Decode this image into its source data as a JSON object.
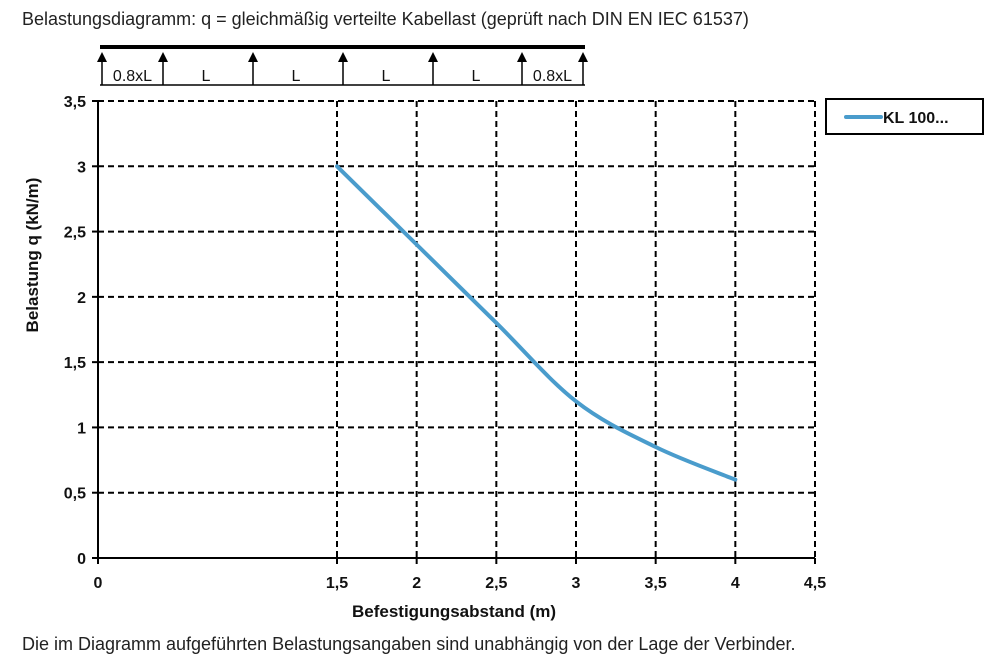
{
  "title": "Belastungsdiagramm: q = gleichmäßig verteilte Kabellast (geprüft nach DIN EN IEC 61537)",
  "note": "Die im Diagramm aufgeführten Belastungsangaben sind unabhängig von der Lage der Verbinder.",
  "beam": {
    "spans": [
      "0.8xL",
      "L",
      "L",
      "L",
      "L",
      "0.8xL"
    ]
  },
  "chart_data": {
    "type": "line",
    "xlabel": "Befestigungsabstand (m)",
    "ylabel": "Belastung q (kN/m)",
    "xlim": [
      0,
      4.5
    ],
    "ylim": [
      0,
      3.5
    ],
    "xticks": [
      {
        "value": 0,
        "label": "0"
      },
      {
        "value": 1.5,
        "label": "1,5"
      },
      {
        "value": 2,
        "label": "2"
      },
      {
        "value": 2.5,
        "label": "2,5"
      },
      {
        "value": 3,
        "label": "3"
      },
      {
        "value": 3.5,
        "label": "3,5"
      },
      {
        "value": 4,
        "label": "4"
      },
      {
        "value": 4.5,
        "label": "4,5"
      }
    ],
    "yticks": [
      {
        "value": 0,
        "label": "0"
      },
      {
        "value": 0.5,
        "label": "0,5"
      },
      {
        "value": 1,
        "label": "1"
      },
      {
        "value": 1.5,
        "label": "1,5"
      },
      {
        "value": 2,
        "label": "2"
      },
      {
        "value": 2.5,
        "label": "2,5"
      },
      {
        "value": 3,
        "label": "3"
      },
      {
        "value": 3.5,
        "label": "3,5"
      }
    ],
    "grid": true,
    "legend": "right",
    "series": [
      {
        "name": "KL 100...",
        "color": "#4a9ccc",
        "x": [
          1.5,
          2.0,
          2.5,
          3.0,
          3.5,
          4.0
        ],
        "y": [
          3.0,
          2.4,
          1.8,
          1.2,
          0.85,
          0.6
        ]
      }
    ]
  }
}
